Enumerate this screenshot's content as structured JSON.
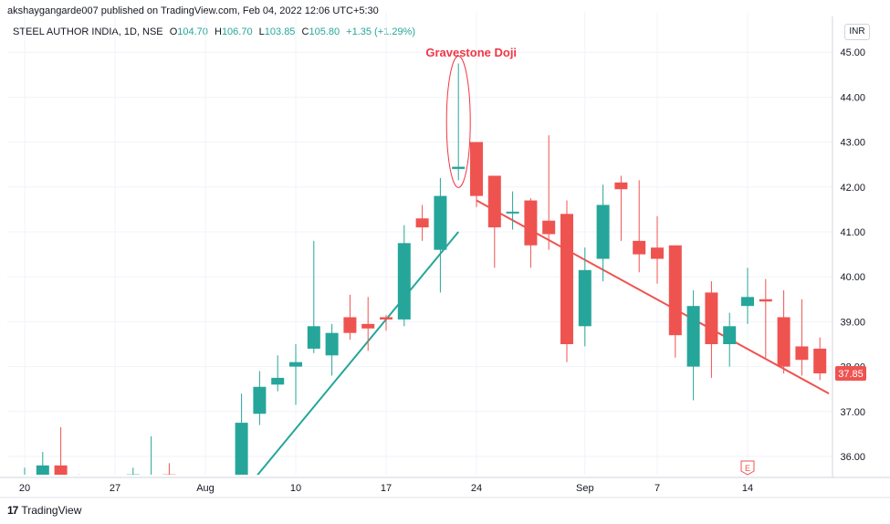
{
  "header": {
    "text": "akshaygangarde007 published on TradingView.com, Feb 04, 2022 12:06 UTC+5:30"
  },
  "legend": {
    "symbol": "STEEL AUTHOR INDIA, 1D, NSE",
    "o_label": "O",
    "o_val": "104.70",
    "h_label": "H",
    "h_val": "106.70",
    "l_label": "L",
    "l_val": "103.85",
    "c_label": "C",
    "c_val": "105.80",
    "change": "+1.35 (+1.29%)"
  },
  "currency": "INR",
  "footer": {
    "logo": "17",
    "brand": "TradingView"
  },
  "colors": {
    "up": "#26a69a",
    "down": "#ef5350",
    "annotation": "#f23645",
    "grid": "#f0f3fa"
  },
  "chart_data": {
    "type": "candlestick",
    "y_ticks": [
      "45.00",
      "44.00",
      "43.00",
      "42.00",
      "41.00",
      "40.00",
      "39.00",
      "38.00",
      "37.00",
      "36.00"
    ],
    "ylim": [
      35.5,
      45.2
    ],
    "x_ticks": [
      {
        "i": 0,
        "label": "20"
      },
      {
        "i": 5,
        "label": "27"
      },
      {
        "i": 10,
        "label": "Aug"
      },
      {
        "i": 15,
        "label": "10"
      },
      {
        "i": 20,
        "label": "17"
      },
      {
        "i": 25,
        "label": "24"
      },
      {
        "i": 31,
        "label": "Sep"
      },
      {
        "i": 35,
        "label": "7"
      },
      {
        "i": 40,
        "label": "14"
      }
    ],
    "candles": [
      {
        "o": 35.53,
        "h": 35.75,
        "l": 35.48,
        "c": 35.55
      },
      {
        "o": 35.55,
        "h": 36.1,
        "l": 35.48,
        "c": 35.8
      },
      {
        "o": 35.8,
        "h": 36.65,
        "l": 35.4,
        "c": 35.55
      },
      {
        "o": 35.55,
        "h": 35.6,
        "l": 35.45,
        "c": 35.52
      },
      {
        "o": 35.5,
        "h": 35.55,
        "l": 35.45,
        "c": 35.5
      },
      {
        "o": 35.5,
        "h": 35.55,
        "l": 35.45,
        "c": 35.52
      },
      {
        "o": 35.52,
        "h": 35.75,
        "l": 35.45,
        "c": 35.6
      },
      {
        "o": 35.55,
        "h": 36.45,
        "l": 35.5,
        "c": 35.58
      },
      {
        "o": 35.6,
        "h": 35.85,
        "l": 35.5,
        "c": 35.5
      },
      {
        "o": 35.5,
        "h": 35.55,
        "l": 35.45,
        "c": 35.52
      },
      {
        "o": 35.5,
        "h": 35.55,
        "l": 35.45,
        "c": 35.52
      },
      {
        "o": 35.5,
        "h": 35.55,
        "l": 35.45,
        "c": 35.52
      },
      {
        "o": 35.55,
        "h": 37.4,
        "l": 35.5,
        "c": 36.75
      },
      {
        "o": 36.95,
        "h": 37.9,
        "l": 36.7,
        "c": 37.55
      },
      {
        "o": 37.6,
        "h": 38.25,
        "l": 37.45,
        "c": 37.75
      },
      {
        "o": 38.0,
        "h": 38.5,
        "l": 37.15,
        "c": 38.1
      },
      {
        "o": 38.4,
        "h": 40.8,
        "l": 38.3,
        "c": 38.9
      },
      {
        "o": 38.25,
        "h": 38.95,
        "l": 37.8,
        "c": 38.75
      },
      {
        "o": 39.1,
        "h": 39.6,
        "l": 38.6,
        "c": 38.75
      },
      {
        "o": 38.95,
        "h": 39.55,
        "l": 38.35,
        "c": 38.85
      },
      {
        "o": 39.1,
        "h": 39.15,
        "l": 38.8,
        "c": 39.05
      },
      {
        "o": 39.05,
        "h": 41.15,
        "l": 38.9,
        "c": 40.75
      },
      {
        "o": 41.3,
        "h": 41.6,
        "l": 40.8,
        "c": 41.1
      },
      {
        "o": 40.6,
        "h": 42.2,
        "l": 39.65,
        "c": 41.8
      },
      {
        "o": 42.4,
        "h": 44.75,
        "l": 42.15,
        "c": 42.45
      },
      {
        "o": 43.0,
        "h": 43.0,
        "l": 41.55,
        "c": 41.8
      },
      {
        "o": 42.25,
        "h": 42.25,
        "l": 40.2,
        "c": 41.1
      },
      {
        "o": 41.45,
        "h": 41.9,
        "l": 41.05,
        "c": 41.45
      },
      {
        "o": 41.7,
        "h": 41.75,
        "l": 40.2,
        "c": 40.7
      },
      {
        "o": 41.25,
        "h": 43.15,
        "l": 40.6,
        "c": 40.95
      },
      {
        "o": 41.4,
        "h": 41.7,
        "l": 38.1,
        "c": 38.5
      },
      {
        "o": 38.9,
        "h": 40.65,
        "l": 38.45,
        "c": 40.15
      },
      {
        "o": 40.4,
        "h": 42.05,
        "l": 39.9,
        "c": 41.6
      },
      {
        "o": 42.1,
        "h": 42.25,
        "l": 40.8,
        "c": 41.95
      },
      {
        "o": 40.8,
        "h": 42.15,
        "l": 40.1,
        "c": 40.5
      },
      {
        "o": 40.65,
        "h": 41.35,
        "l": 39.85,
        "c": 40.4
      },
      {
        "o": 40.7,
        "h": 40.7,
        "l": 38.2,
        "c": 38.7
      },
      {
        "o": 38.0,
        "h": 39.7,
        "l": 37.25,
        "c": 39.35
      },
      {
        "o": 39.65,
        "h": 39.9,
        "l": 37.75,
        "c": 38.5
      },
      {
        "o": 38.5,
        "h": 39.2,
        "l": 38.0,
        "c": 38.9
      },
      {
        "o": 39.35,
        "h": 40.2,
        "l": 38.95,
        "c": 39.55
      },
      {
        "o": 39.5,
        "h": 39.95,
        "l": 38.2,
        "c": 39.45
      },
      {
        "o": 39.1,
        "h": 39.7,
        "l": 37.85,
        "c": 38.0
      },
      {
        "o": 38.45,
        "h": 39.5,
        "l": 37.8,
        "c": 38.15
      },
      {
        "o": 38.4,
        "h": 38.65,
        "l": 37.7,
        "c": 37.85
      }
    ],
    "trendlines": [
      {
        "i0": 12.5,
        "v0": 35.4,
        "i1": 24.0,
        "v1": 41.0,
        "color": "#26a69a"
      },
      {
        "i0": 25.0,
        "v0": 41.7,
        "i1": 44.5,
        "v1": 37.4,
        "color": "#ef5350"
      }
    ],
    "annotation": {
      "text": "Gravestone Doji",
      "i": 24
    },
    "last_price": "37.85",
    "event_marker": {
      "label": "E",
      "i": 40
    }
  }
}
